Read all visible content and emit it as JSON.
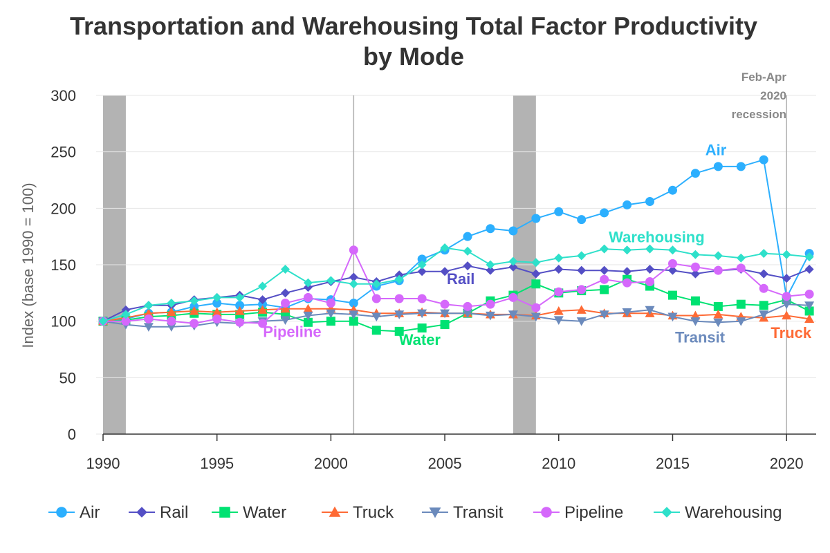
{
  "chart_data": {
    "type": "line",
    "title_lines": [
      "Transportation and Warehousing Total Factor Productivity",
      "by Mode"
    ],
    "ylabel": "Index (base 1990 = 100)",
    "ylim": [
      0,
      300
    ],
    "yticks": [
      0,
      50,
      100,
      150,
      200,
      250,
      300
    ],
    "xlim": [
      1990,
      2021.3
    ],
    "xticks": [
      1990,
      1995,
      2000,
      2005,
      2010,
      2015,
      2020
    ],
    "grid": "horizontal",
    "recession_bands": [
      [
        1990,
        1991
      ],
      [
        2008,
        2009
      ]
    ],
    "vertical_lines": [
      2001,
      2020
    ],
    "annotation_lines": [
      "Feb-Apr",
      "2020",
      "recession"
    ],
    "x": [
      1990,
      1991,
      1992,
      1993,
      1994,
      1995,
      1996,
      1997,
      1998,
      1999,
      2000,
      2001,
      2002,
      2003,
      2004,
      2005,
      2006,
      2007,
      2008,
      2009,
      2010,
      2011,
      2012,
      2013,
      2014,
      2015,
      2016,
      2017,
      2018,
      2019,
      2020,
      2021
    ],
    "series": [
      {
        "name": "Air",
        "color": "#2caffe",
        "marker": "circle",
        "label": {
          "text": "Air",
          "x": 2016.9,
          "y": 247
        },
        "values": [
          100,
          102,
          107,
          108,
          113,
          116,
          114,
          115,
          112,
          120,
          119,
          116,
          131,
          136,
          155,
          163,
          175,
          182,
          180,
          191,
          197,
          190,
          196,
          203,
          206,
          216,
          231,
          237,
          237,
          243,
          121,
          160
        ]
      },
      {
        "name": "Rail",
        "color": "#544fc5",
        "marker": "diamond",
        "label": {
          "text": "Rail",
          "x": 2005.7,
          "y": 133
        },
        "values": [
          100,
          110,
          114,
          114,
          119,
          121,
          123,
          119,
          125,
          130,
          135,
          139,
          135,
          141,
          144,
          144,
          149,
          145,
          148,
          142,
          146,
          145,
          145,
          144,
          146,
          145,
          142,
          145,
          146,
          142,
          138,
          146
        ]
      },
      {
        "name": "Water",
        "color": "#00e272",
        "marker": "square",
        "label": {
          "text": "Water",
          "x": 2003.9,
          "y": 79
        },
        "values": [
          100,
          101,
          104,
          105,
          107,
          106,
          106,
          108,
          106,
          99,
          100,
          100,
          92,
          91,
          94,
          97,
          107,
          118,
          123,
          133,
          125,
          127,
          128,
          137,
          131,
          123,
          118,
          113,
          115,
          114,
          119,
          109
        ]
      },
      {
        "name": "Truck",
        "color": "#fe6a35",
        "marker": "triangle",
        "label": {
          "text": "Truck",
          "x": 2020.2,
          "y": 85
        },
        "values": [
          100,
          103,
          107,
          108,
          109,
          108,
          109,
          110,
          111,
          111,
          111,
          110,
          107,
          107,
          108,
          107,
          107,
          106,
          106,
          105,
          109,
          110,
          107,
          107,
          107,
          105,
          105,
          106,
          104,
          103,
          105,
          102
        ]
      },
      {
        "name": "Transit",
        "color": "#6b8abc",
        "marker": "triangle-down",
        "label": {
          "text": "Transit",
          "x": 2016.2,
          "y": 81
        },
        "values": [
          100,
          97,
          95,
          95,
          96,
          99,
          98,
          100,
          101,
          105,
          107,
          106,
          104,
          106,
          107,
          107,
          107,
          105,
          106,
          104,
          101,
          100,
          106,
          108,
          110,
          104,
          100,
          99,
          100,
          106,
          115,
          114
        ]
      },
      {
        "name": "Pipeline",
        "color": "#d568fb",
        "marker": "circle",
        "label": {
          "text": "Pipeline",
          "x": 1998.3,
          "y": 86
        },
        "values": [
          100,
          100,
          102,
          100,
          98,
          102,
          99,
          98,
          116,
          121,
          116,
          163,
          120,
          120,
          120,
          115,
          113,
          115,
          121,
          112,
          126,
          128,
          137,
          134,
          135,
          151,
          148,
          145,
          147,
          129,
          122,
          124
        ]
      },
      {
        "name": "Warehousing",
        "color": "#2ee0ca",
        "marker": "diamond",
        "label": {
          "text": "Warehousing",
          "x": 2014.3,
          "y": 170
        },
        "values": [
          100,
          106,
          114,
          116,
          118,
          121,
          121,
          131,
          146,
          134,
          136,
          133,
          133,
          137,
          150,
          165,
          162,
          150,
          153,
          152,
          156,
          158,
          164,
          163,
          164,
          163,
          159,
          158,
          156,
          160,
          159,
          157
        ]
      }
    ]
  }
}
